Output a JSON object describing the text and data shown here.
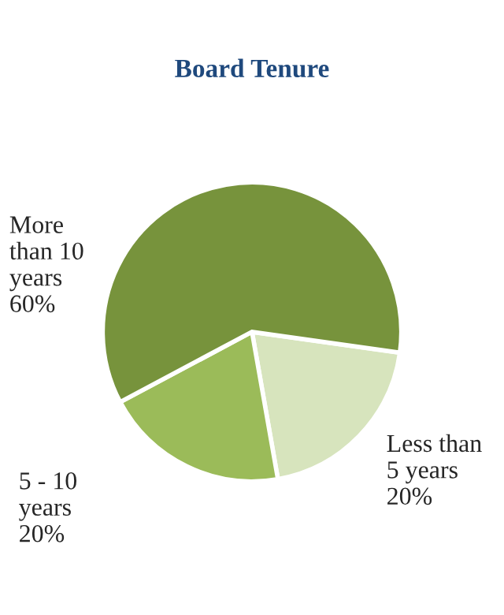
{
  "chart_data": {
    "type": "pie",
    "title": "Board Tenure",
    "categories": [
      "Less than\n5 years",
      "5 - 10\nyears",
      "More\nthan 10\nyears"
    ],
    "values": [
      20,
      20,
      60
    ],
    "value_labels": [
      "20%",
      "20%",
      "60%"
    ],
    "colors": [
      "#d7e4bd",
      "#9bbb59",
      "#77933c"
    ]
  }
}
